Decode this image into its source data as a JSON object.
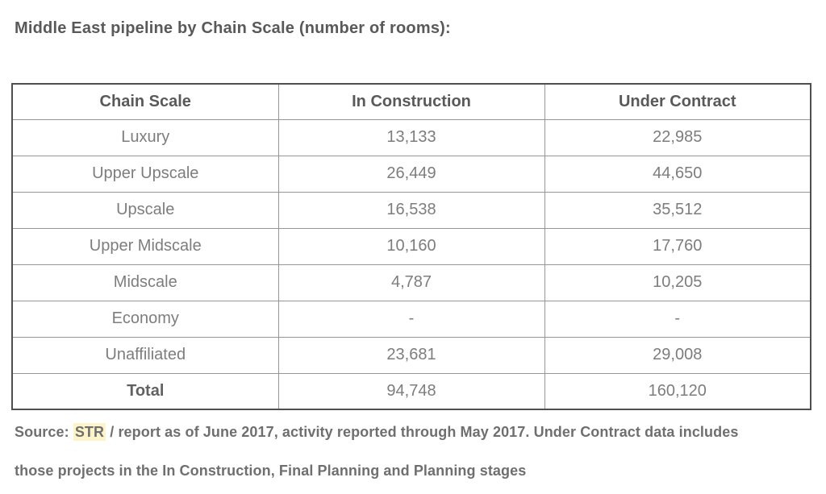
{
  "page": {
    "title": "Middle East pipeline by Chain Scale (number of rooms):"
  },
  "table": {
    "columns": [
      "Chain Scale",
      "In Construction",
      "Under Contract"
    ],
    "rows": [
      [
        "Luxury",
        "13,133",
        "22,985"
      ],
      [
        "Upper Upscale",
        "26,449",
        "44,650"
      ],
      [
        "Upscale",
        "16,538",
        "35,512"
      ],
      [
        "Upper Midscale",
        "10,160",
        "17,760"
      ],
      [
        "Midscale",
        "4,787",
        "10,205"
      ],
      [
        "Economy",
        "-",
        "-"
      ],
      [
        "Unaffiliated",
        "23,681",
        "29,008"
      ],
      [
        "Total",
        "94,748",
        "160,120"
      ]
    ]
  },
  "source_note": {
    "prefix": "Source: ",
    "highlighted_term": "STR",
    "text_after": " / report as of June 2017, activity reported through May 2017. Under Contract data includes those projects in the In Construction, Final Planning and Planning stages"
  },
  "colors": {
    "title_text": "#595959",
    "header_text": "#595959",
    "cell_text": "#7d7d7d",
    "outer_border": "#4f4f4f",
    "inner_border": "#979797",
    "note_text": "#6f6f6f",
    "highlight_bg": "#fdf5c9"
  }
}
